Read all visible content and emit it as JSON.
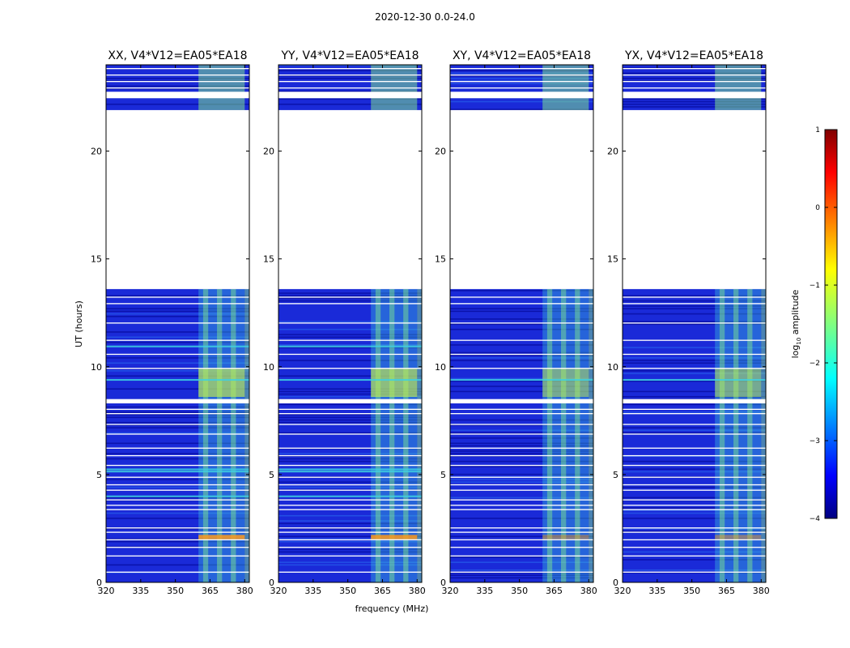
{
  "figure": {
    "suptitle": "2020-12-30 0.0-24.0"
  },
  "chart_data": {
    "type": "heatmap",
    "suptitle": "2020-12-30 0.0-24.0",
    "panels": [
      {
        "title": "XX, V4*V12=EA05*EA18",
        "pol": "XX"
      },
      {
        "title": "YY, V4*V12=EA05*EA18",
        "pol": "YY"
      },
      {
        "title": "XY, V4*V12=EA05*EA18",
        "pol": "XY"
      },
      {
        "title": "YX, V4*V12=EA05*EA18",
        "pol": "YX"
      }
    ],
    "xlabel": "frequency (MHz)",
    "ylabel": "UT (hours)",
    "xlim": [
      320,
      382
    ],
    "ylim": [
      0,
      24
    ],
    "xticks": [
      "320",
      "335",
      "350",
      "365",
      "380"
    ],
    "yticks": [
      "0",
      "5",
      "10",
      "15",
      "20"
    ],
    "colorbar": {
      "label": "log10 amplitude",
      "ticks": [
        "1",
        "0",
        "−1",
        "−2",
        "−3",
        "−4"
      ],
      "range": [
        -4,
        1
      ],
      "colormap": "jet"
    },
    "data_gaps_hours": [
      [
        13.6,
        21.9
      ],
      [
        8.3,
        8.5
      ]
    ],
    "rfi_band_mhz": [
      360,
      380
    ],
    "series": [
      {
        "name": "XX",
        "background_log_amp": -3.2,
        "rfi_log_amp": -2.0,
        "peak_log_amp": 0.0
      },
      {
        "name": "YY",
        "background_log_amp": -3.2,
        "rfi_log_amp": -1.8,
        "peak_log_amp": 0.0
      },
      {
        "name": "XY",
        "background_log_amp": -3.3,
        "rfi_log_amp": -2.0,
        "peak_log_amp": -1.5
      },
      {
        "name": "YX",
        "background_log_amp": -3.3,
        "rfi_log_amp": -2.0,
        "peak_log_amp": -1.5
      }
    ]
  },
  "colors": {
    "background_blue": "#1a2ad8",
    "dark_blue": "#00008b",
    "rfi_cyan": "#3fd0e0",
    "rfi_green": "#86f088",
    "peak_orange": "#ff9a1a"
  }
}
